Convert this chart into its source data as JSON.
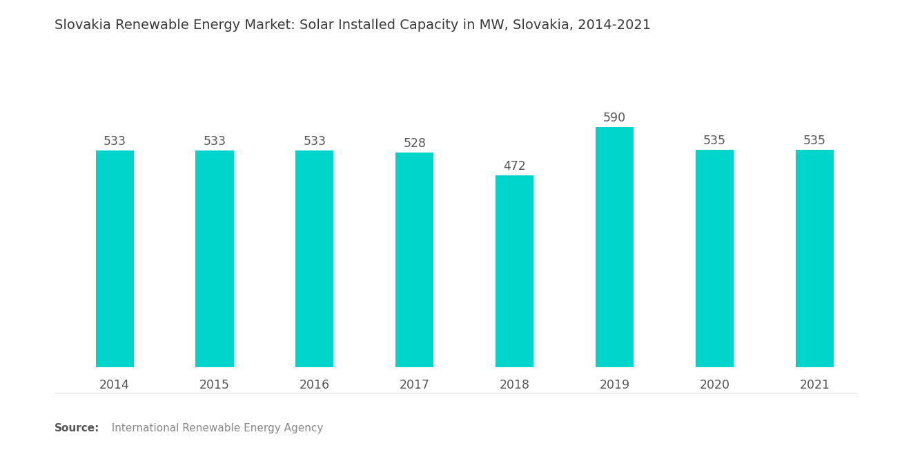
{
  "title": "Slovakia Renewable Energy Market: Solar Installed Capacity in MW, Slovakia, 2014-2021",
  "years": [
    2014,
    2015,
    2016,
    2017,
    2018,
    2019,
    2020,
    2021
  ],
  "values": [
    533,
    533,
    533,
    528,
    472,
    590,
    535,
    535
  ],
  "bar_color": "#00D5CB",
  "background_color": "#ffffff",
  "title_fontsize": 14,
  "label_fontsize": 12.5,
  "tick_fontsize": 12.5,
  "source_bold": "Source:",
  "source_rest": "  International Renewable Energy Agency",
  "ylim": [
    0,
    700
  ],
  "bar_width": 0.38
}
